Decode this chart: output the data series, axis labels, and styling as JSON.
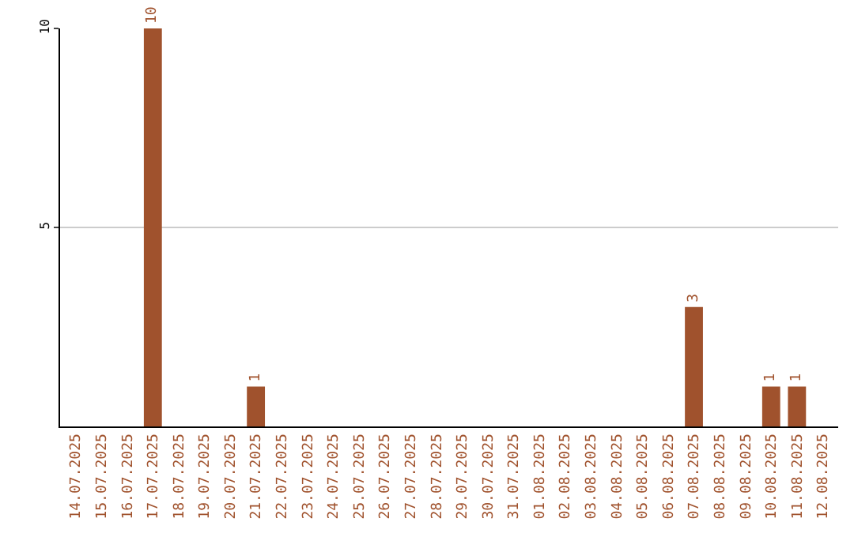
{
  "chart_data": {
    "type": "bar",
    "categories": [
      "14.07.2025",
      "15.07.2025",
      "16.07.2025",
      "17.07.2025",
      "18.07.2025",
      "19.07.2025",
      "20.07.2025",
      "21.07.2025",
      "22.07.2025",
      "23.07.2025",
      "24.07.2025",
      "25.07.2025",
      "26.07.2025",
      "27.07.2025",
      "28.07.2025",
      "29.07.2025",
      "30.07.2025",
      "31.07.2025",
      "01.08.2025",
      "02.08.2025",
      "03.08.2025",
      "04.08.2025",
      "05.08.2025",
      "06.08.2025",
      "07.08.2025",
      "08.08.2025",
      "09.08.2025",
      "10.08.2025",
      "11.08.2025",
      "12.08.2025"
    ],
    "values": [
      0,
      0,
      0,
      10,
      0,
      0,
      0,
      1,
      0,
      0,
      0,
      0,
      0,
      0,
      0,
      0,
      0,
      0,
      0,
      0,
      0,
      0,
      0,
      0,
      3,
      0,
      0,
      1,
      1,
      0
    ],
    "value_labels": [
      null,
      null,
      null,
      "10",
      null,
      null,
      null,
      "1",
      null,
      null,
      null,
      null,
      null,
      null,
      null,
      null,
      null,
      null,
      null,
      null,
      null,
      null,
      null,
      null,
      "3",
      null,
      null,
      "1",
      "1",
      null
    ],
    "color": "#a0522d",
    "ylim": [
      0,
      10
    ],
    "yticks": [
      5,
      10
    ],
    "grid": "y"
  }
}
